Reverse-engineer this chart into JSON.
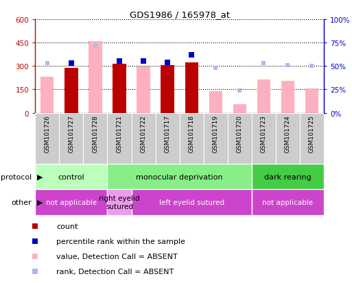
{
  "title": "GDS1986 / 165978_at",
  "samples": [
    "GSM101726",
    "GSM101727",
    "GSM101728",
    "GSM101721",
    "GSM101722",
    "GSM101717",
    "GSM101718",
    "GSM101719",
    "GSM101720",
    "GSM101723",
    "GSM101724",
    "GSM101725"
  ],
  "count": [
    null,
    290,
    null,
    315,
    null,
    305,
    325,
    null,
    null,
    null,
    null,
    null
  ],
  "value_absent": [
    230,
    null,
    460,
    null,
    295,
    null,
    null,
    140,
    55,
    215,
    205,
    155
  ],
  "percentile_rank": [
    null,
    53.0,
    null,
    55.0,
    55.0,
    54.0,
    62.0,
    null,
    null,
    null,
    null,
    null
  ],
  "rank_absent": [
    53.0,
    null,
    72.0,
    null,
    null,
    null,
    null,
    48.0,
    24.0,
    53.0,
    51.0,
    50.0
  ],
  "ylim_left": [
    0,
    600
  ],
  "ylim_right": [
    0,
    100
  ],
  "yticks_left": [
    0,
    150,
    300,
    450,
    600
  ],
  "yticks_right": [
    0,
    25,
    50,
    75,
    100
  ],
  "ytick_labels_left": [
    "0",
    "150",
    "300",
    "450",
    "600"
  ],
  "ytick_labels_right": [
    "0%",
    "25%",
    "50%",
    "75%",
    "100%"
  ],
  "color_count": "#bb0000",
  "color_value_absent": "#ffb0c0",
  "color_percentile": "#0000cc",
  "color_rank_absent": "#aabbee",
  "protocol_groups": [
    {
      "label": "control",
      "start": 0,
      "end": 3,
      "color": "#bbffbb"
    },
    {
      "label": "monocular deprivation",
      "start": 3,
      "end": 9,
      "color": "#88ee88"
    },
    {
      "label": "dark rearing",
      "start": 9,
      "end": 12,
      "color": "#44cc44"
    }
  ],
  "other_groups": [
    {
      "label": "not applicable",
      "start": 0,
      "end": 3,
      "color": "#cc44cc"
    },
    {
      "label": "right eyelid\nsutured",
      "start": 3,
      "end": 4,
      "color": "#ee99ee"
    },
    {
      "label": "left eyelid sutured",
      "start": 4,
      "end": 9,
      "color": "#cc44cc"
    },
    {
      "label": "not applicable",
      "start": 9,
      "end": 12,
      "color": "#cc44cc"
    }
  ],
  "bar_width": 0.55,
  "tick_bg_color": "#cccccc",
  "tick_bg_alt_color": "#bbbbbb"
}
